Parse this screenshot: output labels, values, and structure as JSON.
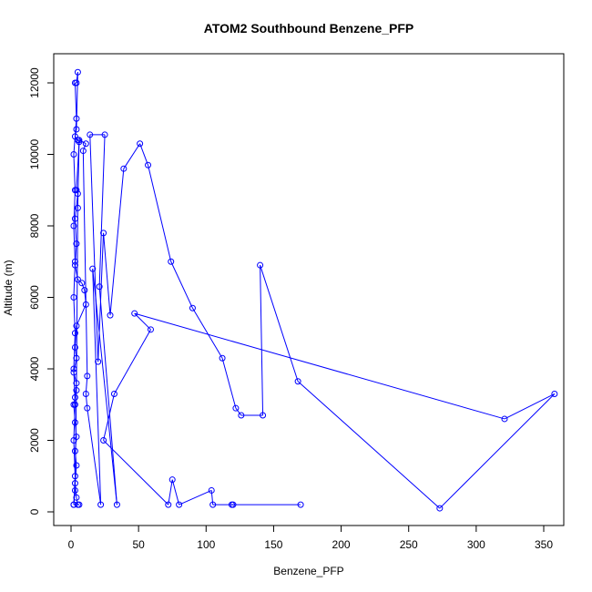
{
  "chart_data": {
    "type": "scatter",
    "title": "ATOM2 Southbound Benzene_PFP",
    "xlabel": "Benzene_PFP",
    "ylabel": "Altitude (m)",
    "xlim": [
      0,
      360
    ],
    "ylim": [
      0,
      12500
    ],
    "xticks": [
      0,
      50,
      100,
      150,
      200,
      250,
      300,
      350
    ],
    "yticks": [
      0,
      2000,
      4000,
      6000,
      8000,
      10000,
      12000
    ],
    "grid": false,
    "color": "#0000ff",
    "style": "points connected by lines (type o)",
    "series": [
      {
        "values": [
          [
            2,
            200
          ],
          [
            3,
            1000
          ],
          [
            2,
            2000
          ],
          [
            3,
            3000
          ],
          [
            2,
            4000
          ],
          [
            3,
            5000
          ],
          [
            2,
            6000
          ],
          [
            3,
            7000
          ],
          [
            2,
            8000
          ],
          [
            3,
            9000
          ],
          [
            2,
            10000
          ],
          [
            4,
            11000
          ],
          [
            3,
            12000
          ],
          [
            4,
            12000
          ],
          [
            5,
            12300
          ],
          [
            4,
            10700
          ],
          [
            3,
            10500
          ],
          [
            5,
            10400
          ],
          [
            6,
            10350
          ],
          [
            4,
            9000
          ],
          [
            5,
            8900
          ],
          [
            3,
            8200
          ],
          [
            4,
            7500
          ],
          [
            3,
            6900
          ],
          [
            5,
            6500
          ],
          [
            8,
            6400
          ],
          [
            10,
            6200
          ],
          [
            11,
            5800
          ],
          [
            4,
            5200
          ],
          [
            3,
            4600
          ],
          [
            4,
            4300
          ],
          [
            2,
            3900
          ],
          [
            4,
            3600
          ],
          [
            3,
            3200
          ],
          [
            2,
            3000
          ],
          [
            3,
            2500
          ],
          [
            4,
            2100
          ],
          [
            3,
            1700
          ],
          [
            4,
            1300
          ],
          [
            3,
            800
          ],
          [
            4,
            400
          ],
          [
            5,
            200
          ],
          [
            6,
            200
          ],
          [
            2,
            200
          ],
          [
            3,
            600
          ],
          [
            4,
            3400
          ],
          [
            5,
            8500
          ],
          [
            6,
            10400
          ],
          [
            11,
            10300
          ],
          [
            9,
            10100
          ],
          [
            12,
            3800
          ],
          [
            11,
            3300
          ],
          [
            12,
            2900
          ],
          [
            22,
            200
          ],
          [
            16,
            6800
          ],
          [
            34,
            200
          ],
          [
            21,
            6300
          ],
          [
            25,
            10550
          ],
          [
            14,
            10550
          ],
          [
            20,
            4200
          ],
          [
            24,
            7800
          ],
          [
            29,
            5500
          ],
          [
            39,
            9600
          ],
          [
            51,
            10300
          ],
          [
            57,
            9700
          ],
          [
            74,
            7000
          ],
          [
            90,
            5700
          ],
          [
            112,
            4300
          ],
          [
            122,
            2900
          ],
          [
            126,
            2700
          ],
          [
            142,
            2700
          ],
          [
            140,
            6900
          ],
          [
            168,
            3650
          ],
          [
            273,
            100
          ],
          [
            358,
            3300
          ],
          [
            321,
            2600
          ],
          [
            47,
            5550
          ],
          [
            59,
            5100
          ],
          [
            32,
            3300
          ],
          [
            24,
            2000
          ],
          [
            72,
            200
          ],
          [
            75,
            900
          ],
          [
            80,
            200
          ],
          [
            104,
            600
          ],
          [
            105,
            200
          ],
          [
            120,
            200
          ],
          [
            119,
            200
          ],
          [
            170,
            200
          ]
        ]
      }
    ]
  }
}
